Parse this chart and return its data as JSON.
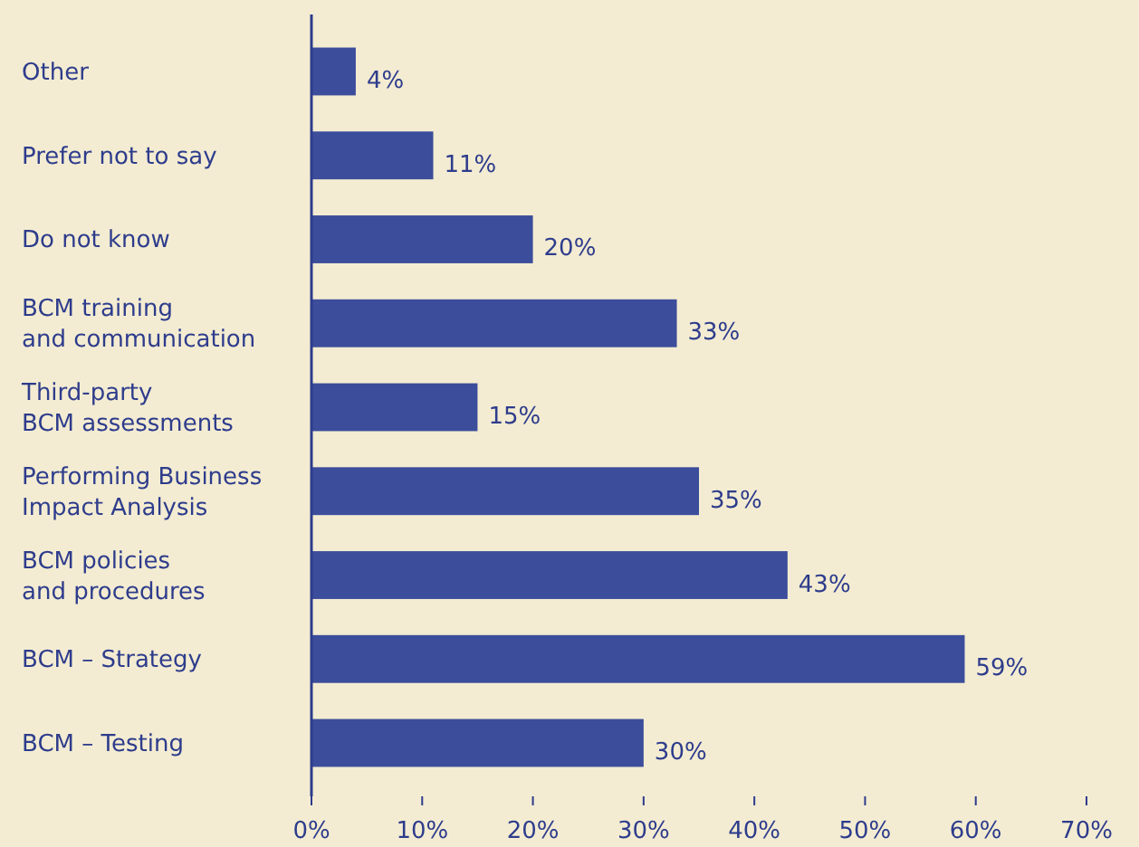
{
  "chart_data": {
    "type": "bar",
    "orientation": "horizontal",
    "categories": [
      "Other",
      "Prefer not to say",
      "Do not know",
      "BCM training\nand communication",
      "Third-party\nBCM assessments",
      "Performing Business\nImpact Analysis",
      "BCM policies\nand procedures",
      "BCM – Strategy",
      "BCM – Testing"
    ],
    "values": [
      4,
      11,
      20,
      33,
      15,
      35,
      43,
      59,
      30
    ],
    "value_labels": [
      "4%",
      "11%",
      "20%",
      "33%",
      "15%",
      "35%",
      "43%",
      "59%",
      "30%"
    ],
    "color": "#3b4d9b",
    "xlim": [
      0,
      70
    ],
    "xticks": [
      {
        "value": 0,
        "label": "0%"
      },
      {
        "value": 10,
        "label": "10%"
      },
      {
        "value": 20,
        "label": "20%"
      },
      {
        "value": 30,
        "label": "30%"
      },
      {
        "value": 40,
        "label": "40%"
      },
      {
        "value": 50,
        "label": "50%"
      },
      {
        "value": 60,
        "label": "60%"
      },
      {
        "value": 70,
        "label": "70%"
      }
    ],
    "grid": false
  }
}
